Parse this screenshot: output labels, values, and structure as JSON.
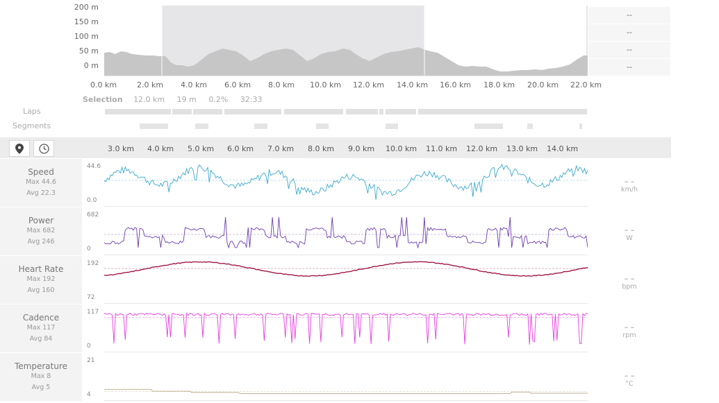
{
  "elevation": {
    "y_ticks": [
      "200 m",
      "150 m",
      "100 m",
      "50 m",
      "0 m"
    ],
    "x_ticks": [
      "0.0 km",
      "2.0 km",
      "4.0 km",
      "6.0 km",
      "8.0 km",
      "10.0 km",
      "12.0 km",
      "14.0 km",
      "16.0 km",
      "18.0 km",
      "20.0 km",
      "22.0 km"
    ],
    "side_values": [
      "--",
      "--",
      "--",
      "--"
    ]
  },
  "selection": {
    "label": "Selection",
    "distance": "12.0 km",
    "elevation": "19 m",
    "grade": "0.2%",
    "time": "32:33"
  },
  "rows": {
    "laps_label": "Laps",
    "segments_label": "Segments"
  },
  "toolbar": {
    "location_icon": "map-pin-icon",
    "time_icon": "clock-icon"
  },
  "km_axis": [
    "3.0 km",
    "4.0 km",
    "5.0 km",
    "6.0 km",
    "7.0 km",
    "8.0 km",
    "9.0 km",
    "10.0 km",
    "11.0 km",
    "12.0 km",
    "13.0 km",
    "14.0 km"
  ],
  "metrics": [
    {
      "name": "Speed",
      "max": "Max 44.6",
      "avg": "Avg 22.3",
      "ymax": "44.6",
      "ymin": "0.0",
      "value": "– –",
      "unit": "km/h",
      "color": "#3aa9cc",
      "avgfrac": 0.5
    },
    {
      "name": "Power",
      "max": "Max 682",
      "avg": "Avg 246",
      "ymax": "682",
      "ymin": "0",
      "value": "– –",
      "unit": "W",
      "color": "#6b3bb0",
      "avgfrac": 0.36
    },
    {
      "name": "Heart Rate",
      "max": "Max 192",
      "avg": "Avg 160",
      "ymax": "192",
      "ymin": "72",
      "value": "– –",
      "unit": "bpm",
      "color": "#a01845",
      "avgfrac": 0.73
    },
    {
      "name": "Cadence",
      "max": "Max 117",
      "avg": "Avg 84",
      "ymax": "117",
      "ymin": "0",
      "value": "– –",
      "unit": "rpm",
      "color": "#e83ae0",
      "avgfrac": 0.72
    },
    {
      "name": "Temperature",
      "max": "Max 8",
      "avg": "Avg 5",
      "ymax": "21",
      "ymin": "4",
      "value": "– –",
      "unit": "°C",
      "color": "#b8a888",
      "avgfrac": 0.06
    }
  ]
}
